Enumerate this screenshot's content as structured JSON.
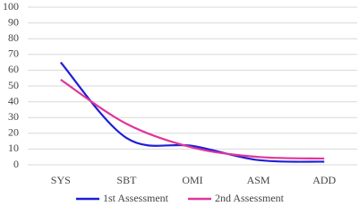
{
  "chart_data": {
    "type": "line",
    "categories": [
      "SYS",
      "SBT",
      "OMI",
      "ASM",
      "ADD"
    ],
    "series": [
      {
        "name": "1st Assessment",
        "color": "#1f1fd6",
        "values": [
          65,
          17,
          12,
          3,
          2
        ]
      },
      {
        "name": "2nd Assessment",
        "color": "#e0359a",
        "values": [
          54,
          26,
          11,
          5,
          4
        ]
      }
    ],
    "ylim": [
      0,
      100
    ],
    "yticks": [
      0,
      10,
      20,
      30,
      40,
      50,
      60,
      70,
      80,
      90,
      100
    ],
    "grid": true,
    "smooth": true,
    "legend": "bottom"
  }
}
